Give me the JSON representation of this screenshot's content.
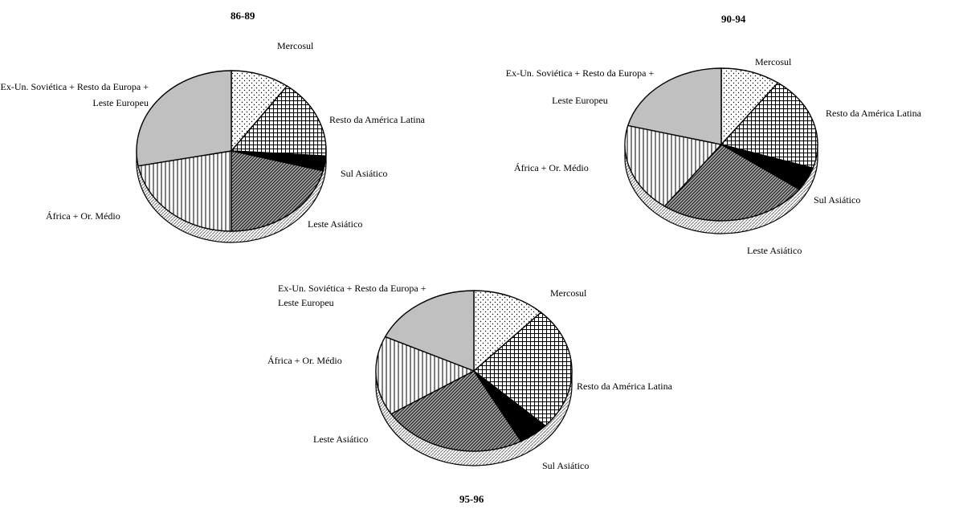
{
  "chart_data": [
    {
      "type": "pie",
      "title": "86-89",
      "categories": [
        "Mercosul",
        "Resto da América Latina",
        "Sul Asiático",
        "Leste Asiático",
        "África + Or. Médio",
        "Ex-Un. Soviética + Resto da Europa + Leste Europeu"
      ],
      "values": [
        10,
        16,
        3,
        21,
        22,
        28
      ],
      "patterns": [
        "dots",
        "grid",
        "black",
        "diagonal",
        "vertical",
        "gray"
      ]
    },
    {
      "type": "pie",
      "title": "90-94",
      "categories": [
        "Mercosul",
        "Resto da América Latina",
        "Sul Asiático",
        "Leste Asiático",
        "África + Or. Médio",
        "Ex-Un. Soviética + Resto da Europa + Leste Europeu"
      ],
      "values": [
        10,
        20,
        5,
        25,
        19,
        21
      ],
      "patterns": [
        "dots",
        "grid",
        "black",
        "diagonal",
        "vertical",
        "gray"
      ]
    },
    {
      "type": "pie",
      "title": "95-96",
      "categories": [
        "Mercosul",
        "Resto da América Latina",
        "Sul Asiático",
        "Leste Asiático",
        "África + Or. Médio",
        "Ex-Un. Soviética + Resto da Europa + Leste Europeu"
      ],
      "values": [
        12,
        25,
        5,
        24,
        16,
        18
      ],
      "patterns": [
        "dots",
        "grid",
        "black",
        "diagonal",
        "vertical",
        "gray"
      ]
    }
  ]
}
